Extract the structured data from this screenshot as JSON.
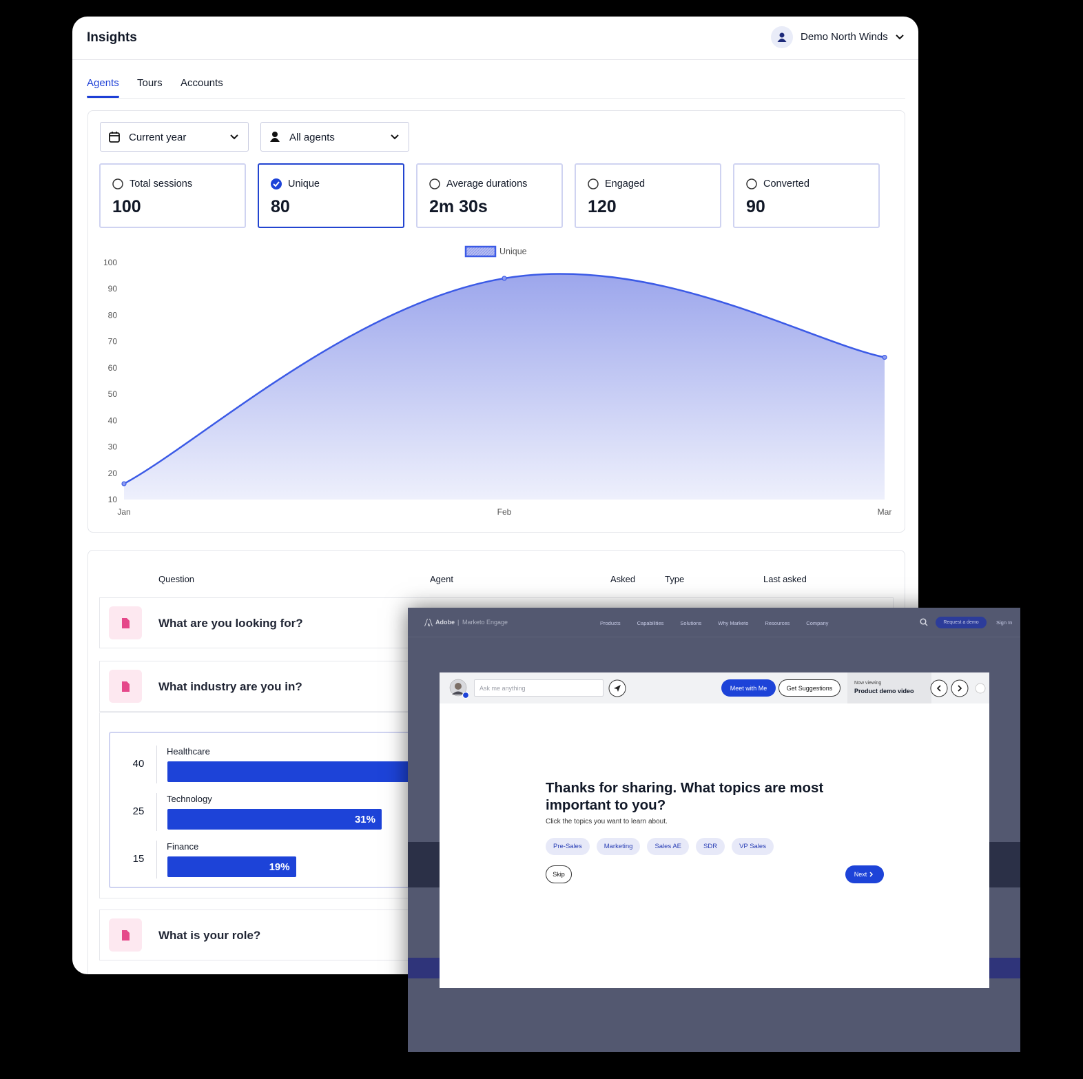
{
  "header": {
    "title": "Insights",
    "user": "Demo North Winds"
  },
  "tabs": [
    "Agents",
    "Tours",
    "Accounts"
  ],
  "filters": [
    "Current year",
    "All agents"
  ],
  "metrics": [
    {
      "label": "Total sessions",
      "value": 100
    },
    {
      "label": "Unique",
      "value": 80,
      "selected": true
    },
    {
      "label": "Average durations",
      "value": "2m 30s"
    },
    {
      "label": "Engaged",
      "value": 120
    },
    {
      "label": "Converted",
      "value": 90
    }
  ],
  "chart_data": {
    "type": "line",
    "categories": [
      "Jan",
      "Feb",
      "Mar"
    ],
    "series": [
      {
        "name": "Unique",
        "color": "#3b5ae6",
        "values": [
          16,
          94,
          64
        ]
      }
    ],
    "ylim": [
      10,
      100
    ],
    "yticks": [
      10,
      20,
      30,
      40,
      50,
      60,
      70,
      80,
      90,
      100
    ],
    "grid": false,
    "legend": "top"
  },
  "table": {
    "columns": [
      "Question",
      "Agent",
      "Asked",
      "Type",
      "Last asked"
    ],
    "rows": [
      "What are you looking for?",
      "What industry are you in?",
      "What is your role?"
    ],
    "breakdown": [
      {
        "label": "Healthcare",
        "count": 40
      },
      {
        "label": "Technology",
        "count": 25,
        "percent": "31%"
      },
      {
        "label": "Finance",
        "count": 15,
        "percent": "19%"
      }
    ]
  },
  "popup": {
    "brand": "Adobe",
    "product": "Marketo Engage",
    "nav": [
      "Products",
      "Capabilities",
      "Solutions",
      "Why Marketo",
      "Resources",
      "Company"
    ],
    "cta": "Request a demo",
    "sign_in": "Sign In",
    "input_placeholder": "Ask me anything",
    "meet": "Meet with Me",
    "suggestions": "Get Suggestions",
    "now_viewing": "Now viewing",
    "viewing_title": "Product demo video",
    "heading": "Thanks for sharing. What topics are most important to you?",
    "subtitle": "Click the topics you want to learn about.",
    "topics": [
      "Pre-Sales",
      "Marketing",
      "Sales AE",
      "SDR",
      "VP Sales"
    ],
    "skip": "Skip",
    "next": "Next"
  }
}
